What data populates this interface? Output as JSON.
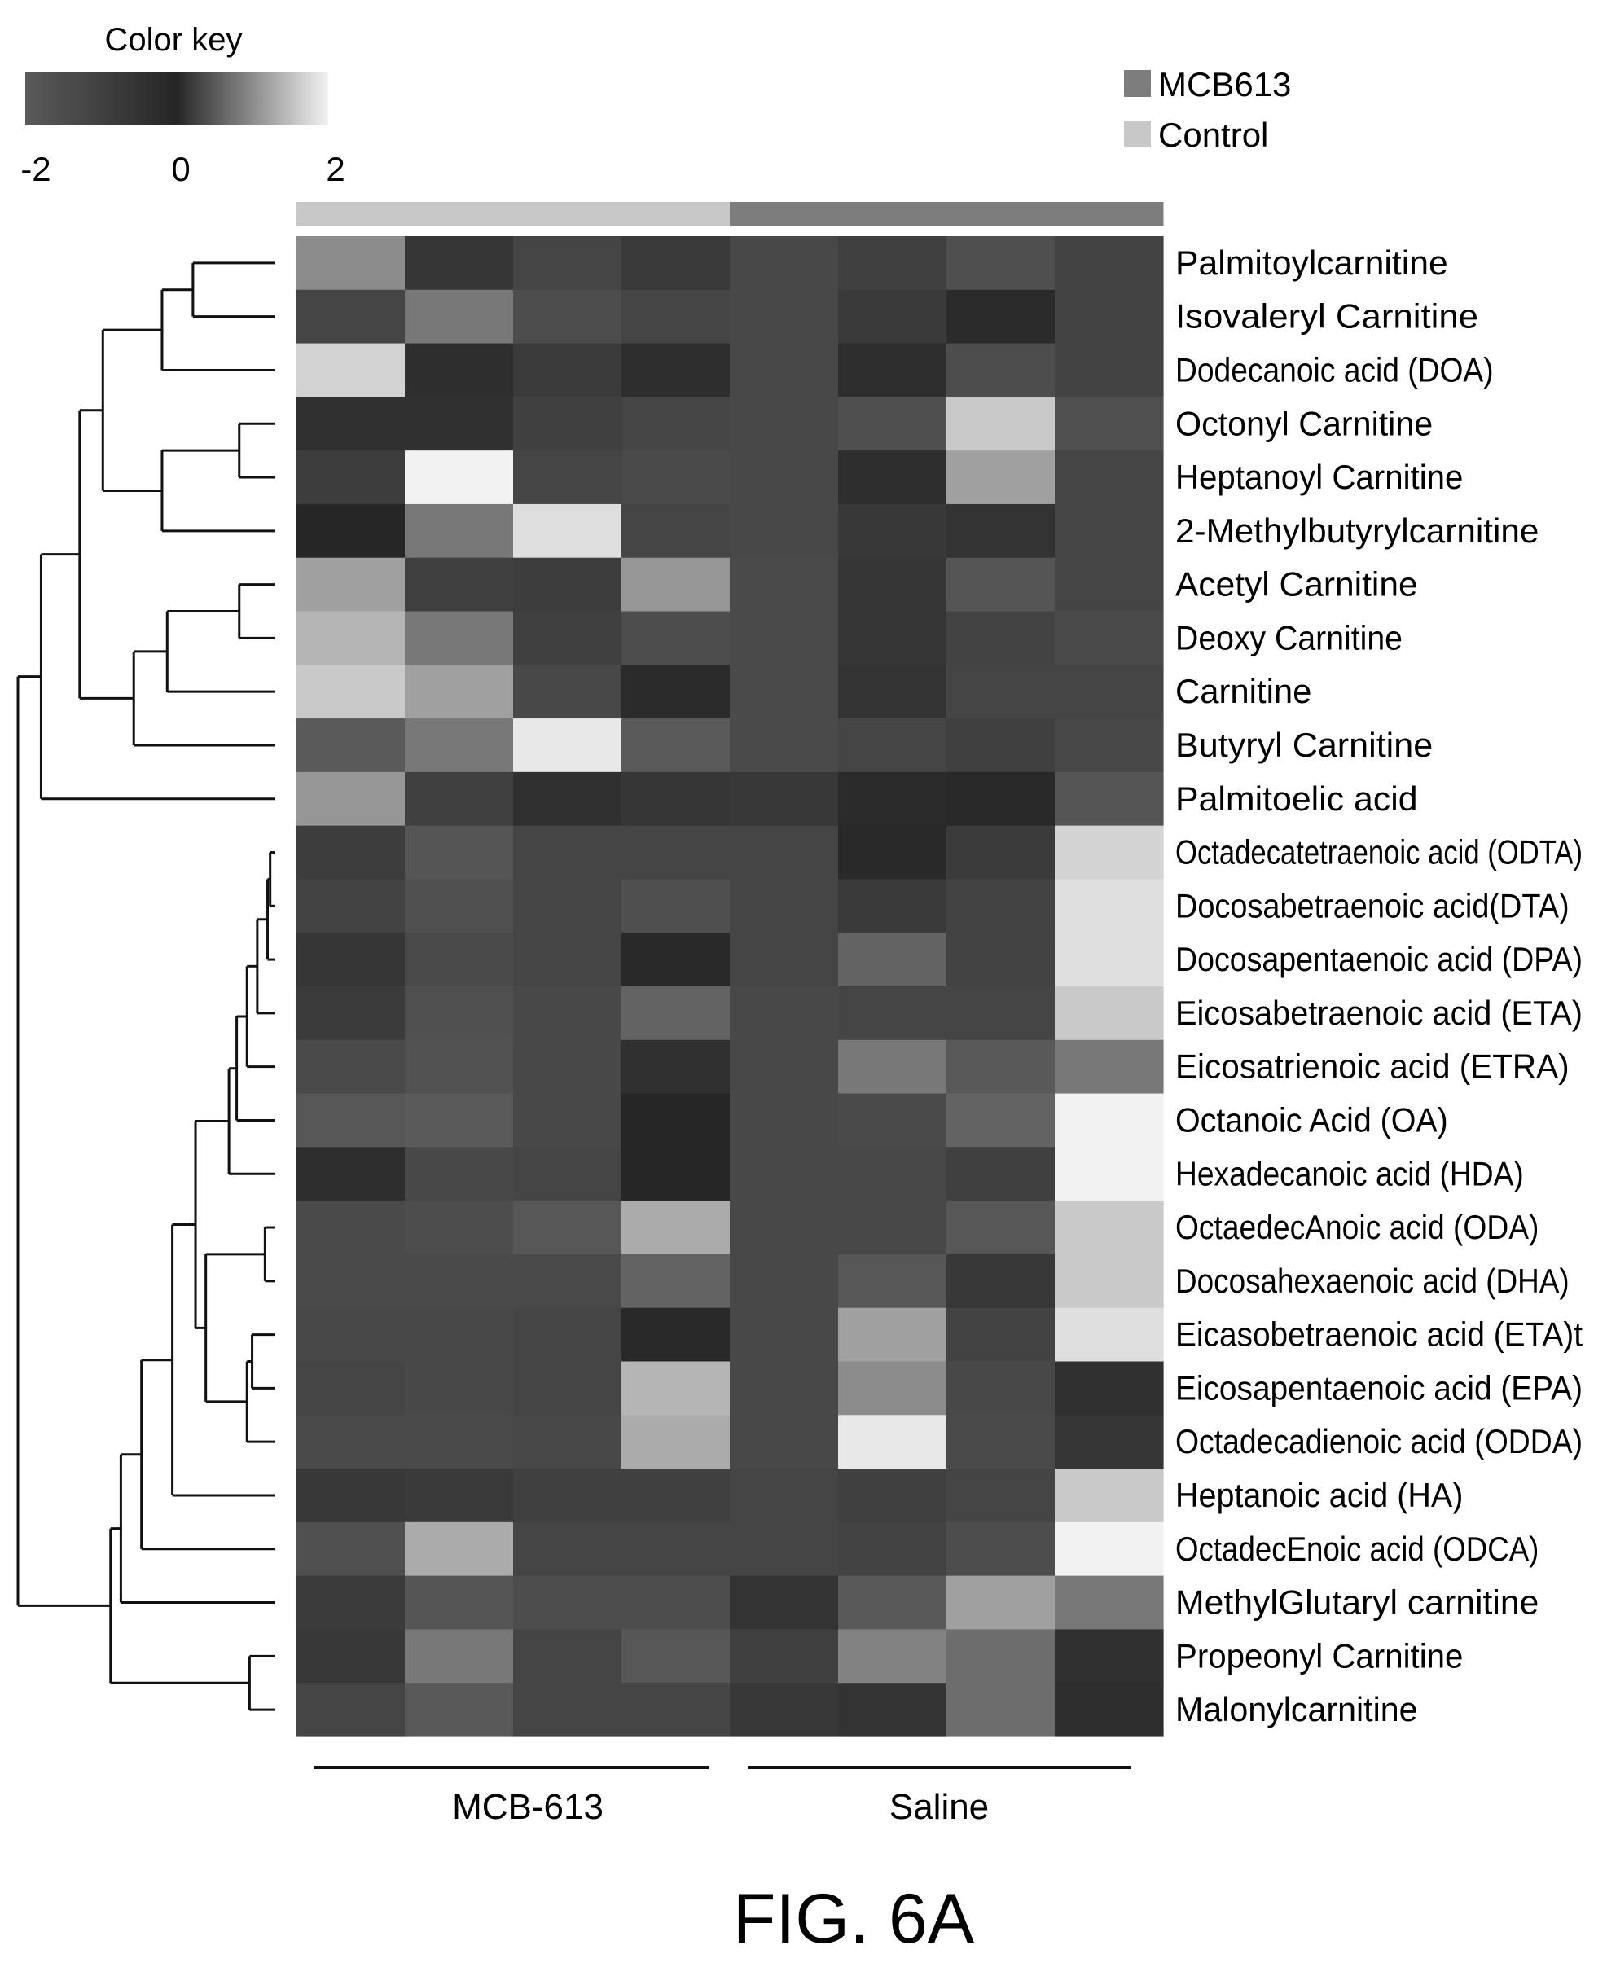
{
  "figure_label": "FIG. 6A",
  "color_key": {
    "title": "Color key",
    "min_label": "-2",
    "mid_label": "0",
    "max_label": "2",
    "range": [
      -2,
      2
    ],
    "colors": [
      "#5a5a5a",
      "#262626",
      "#f2f2f2"
    ]
  },
  "group_legend": [
    {
      "label": "MCB613",
      "color": "#7d7d7d"
    },
    {
      "label": "Control",
      "color": "#c8c8c8"
    }
  ],
  "group_labels": [
    "MCB-613",
    "Saline"
  ],
  "chart_data": {
    "type": "heatmap",
    "title": "",
    "xlabel": "",
    "ylabel": "",
    "value_range": [
      -2,
      2
    ],
    "column_annotation": [
      "Control",
      "Control",
      "Control",
      "Control",
      "MCB613",
      "MCB613",
      "MCB613",
      "MCB613"
    ],
    "rows": [
      "Palmitoylcarnitine",
      "Isovaleryl Carnitine",
      "Dodecanoic acid (DOA)",
      "Octonyl Carnitine",
      "Heptanoyl Carnitine",
      "2-Methylbutyrylcarnitine",
      "Acetyl Carnitine",
      "Deoxy Carnitine",
      "Carnitine",
      "Butyryl Carnitine",
      "Palmitoelic acid",
      "Octadecatetraenoic acid (ODTA)",
      "Docosabetraenoic acid(DTA)",
      "Docosapentaenoic acid (DPA)",
      "Eicosabetraenoic acid (ETA)",
      "Eicosatrienoic acid (ETRA)",
      "Octanoic Acid (OA)",
      "Hexadecanoic acid (HDA)",
      "OctaedecAnoic acid (ODA)",
      "Docosahexaenoic acid (DHA)",
      "Eicasobetraenoic acid (ETA)t",
      "Eicosapentaenoic acid (EPA)",
      "Octadecadienoic acid (ODDA)",
      "Heptanoic acid (HA)",
      "OctadecEnoic acid (ODCA)",
      "MethylGlutaryl carnitine",
      "Propeonyl Carnitine",
      "Malonylcarnitine"
    ],
    "values": [
      [
        1.0,
        -0.6,
        -1.2,
        0.2,
        -1.3,
        -1.0,
        0.4,
        -1.1
      ],
      [
        -1.2,
        0.8,
        -1.5,
        0.3,
        -1.3,
        0.2,
        -0.2,
        -1.1
      ],
      [
        1.7,
        -0.3,
        -0.8,
        -0.3,
        -1.3,
        -0.3,
        -1.5,
        -1.1
      ],
      [
        -0.4,
        -0.4,
        -1.0,
        -1.2,
        -1.3,
        0.4,
        1.6,
        -1.6
      ],
      [
        -0.9,
        2.0,
        -1.2,
        -1.4,
        -1.3,
        -0.3,
        1.2,
        -1.2
      ],
      [
        0.0,
        0.8,
        1.8,
        -1.2,
        -1.3,
        -0.7,
        -0.5,
        -1.2
      ],
      [
        1.2,
        -1.0,
        -0.9,
        1.1,
        -1.4,
        -0.6,
        -1.8,
        -1.2
      ],
      [
        1.4,
        0.8,
        -1.0,
        -1.5,
        -1.4,
        -0.6,
        -1.1,
        -1.4
      ],
      [
        1.6,
        1.2,
        -1.3,
        -0.2,
        -1.4,
        -0.5,
        -1.2,
        -1.2
      ],
      [
        -2.0,
        0.8,
        1.9,
        -2.0,
        -1.4,
        0.3,
        -1.0,
        -1.3
      ],
      [
        1.1,
        -1.0,
        0.1,
        -0.6,
        -0.7,
        -0.2,
        -0.1,
        -1.8
      ],
      [
        -0.9,
        -1.8,
        -1.2,
        0.3,
        -1.2,
        -0.1,
        -0.8,
        1.7
      ],
      [
        -1.1,
        -1.6,
        -1.2,
        0.4,
        -1.2,
        0.2,
        -1.1,
        1.8
      ],
      [
        -0.6,
        -1.4,
        -1.2,
        -0.1,
        -1.2,
        0.6,
        -1.1,
        1.8
      ],
      [
        -0.8,
        -1.6,
        -1.3,
        0.6,
        -1.3,
        -1.2,
        -1.2,
        1.6
      ],
      [
        -1.4,
        -1.7,
        -1.3,
        0.1,
        -1.3,
        0.8,
        0.5,
        0.8
      ],
      [
        -1.9,
        -2.0,
        -1.3,
        0.0,
        -1.3,
        -1.4,
        0.6,
        2.0
      ],
      [
        -0.3,
        -1.3,
        -1.2,
        0.0,
        -1.3,
        -1.3,
        -1.0,
        2.0
      ],
      [
        -1.4,
        -1.5,
        -1.9,
        1.3,
        -1.3,
        -1.3,
        -1.9,
        1.6
      ],
      [
        -1.4,
        -1.4,
        -1.4,
        0.6,
        -1.3,
        -1.9,
        -0.7,
        1.6
      ],
      [
        -1.3,
        -1.3,
        -1.2,
        -0.1,
        -1.3,
        1.2,
        -1.1,
        1.8
      ],
      [
        -1.2,
        -1.3,
        -1.2,
        1.4,
        -1.3,
        1.0,
        -1.3,
        0.1
      ],
      [
        -1.4,
        -1.4,
        -1.3,
        1.3,
        -1.3,
        1.9,
        -1.4,
        -0.6
      ],
      [
        -0.7,
        0.2,
        -1.0,
        -1.0,
        -1.2,
        -1.0,
        -1.2,
        1.6
      ],
      [
        -1.6,
        1.3,
        -1.2,
        -1.2,
        -1.2,
        -1.1,
        -1.5,
        2.0
      ],
      [
        -0.8,
        -1.8,
        -1.5,
        -1.5,
        -0.5,
        0.5,
        1.2,
        0.8
      ],
      [
        -0.7,
        0.8,
        -1.2,
        -1.9,
        -1.0,
        0.9,
        0.7,
        -0.4
      ],
      [
        0.3,
        0.5,
        0.3,
        0.3,
        -0.7,
        -0.5,
        0.7,
        -0.3
      ]
    ],
    "dendrogram": {
      "leaf_order": [
        0,
        1,
        2,
        3,
        4,
        5,
        6,
        7,
        8,
        9,
        10,
        11,
        12,
        13,
        14,
        15,
        16,
        17,
        18,
        19,
        20,
        21,
        22,
        23,
        24,
        25,
        26,
        27
      ],
      "merges": [
        [
          -1,
          -2,
          0.32
        ],
        [
          1,
          -3,
          0.44
        ],
        [
          -4,
          -5,
          0.14
        ],
        [
          3,
          -6,
          0.44
        ],
        [
          2,
          4,
          0.67
        ],
        [
          -7,
          -8,
          0.14
        ],
        [
          6,
          -9,
          0.42
        ],
        [
          7,
          -10,
          0.55
        ],
        [
          5,
          8,
          0.76
        ],
        [
          9,
          -11,
          0.91
        ],
        [
          -12,
          -13,
          0.02
        ],
        [
          11,
          -14,
          0.03
        ],
        [
          12,
          -15,
          0.07
        ],
        [
          13,
          -16,
          0.11
        ],
        [
          14,
          -17,
          0.15
        ],
        [
          15,
          -18,
          0.18
        ],
        [
          -19,
          -20,
          0.04
        ],
        [
          -21,
          -22,
          0.09
        ],
        [
          18,
          -23,
          0.11
        ],
        [
          17,
          19,
          0.27
        ],
        [
          16,
          20,
          0.31
        ],
        [
          21,
          -24,
          0.4
        ],
        [
          22,
          -25,
          0.52
        ],
        [
          -27,
          -28,
          0.1
        ],
        [
          23,
          -26,
          0.6
        ],
        [
          25,
          24,
          0.64
        ],
        [
          10,
          26,
          1.0
        ]
      ]
    }
  }
}
